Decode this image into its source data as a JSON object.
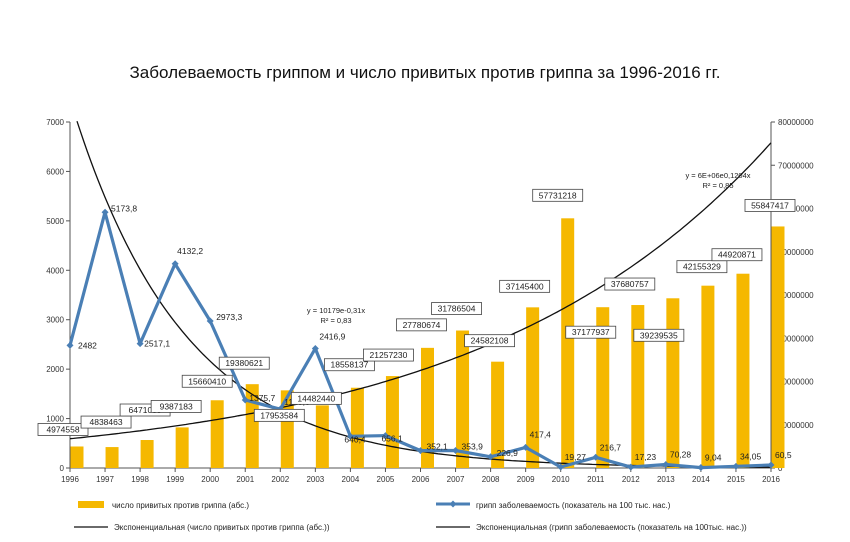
{
  "chart_data": {
    "type": "bar",
    "title": "Заболеваемость гриппом и число привитых против гриппа за 1996-2016 гг.",
    "categories": [
      "1996",
      "1997",
      "1998",
      "1999",
      "2000",
      "2001",
      "2002",
      "2003",
      "2004",
      "2005",
      "2006",
      "2007",
      "2008",
      "2009",
      "2010",
      "2011",
      "2012",
      "2013",
      "2014",
      "2015",
      "2016"
    ],
    "y_left": {
      "min": 0,
      "max": 7000,
      "ticks": [
        "0",
        "1000",
        "2000",
        "3000",
        "4000",
        "5000",
        "6000",
        "7000"
      ]
    },
    "y_right": {
      "min": 0,
      "max": 80000000,
      "ticks": [
        "0",
        "10000000",
        "20000000",
        "30000000",
        "40000000",
        "50000000",
        "60000000",
        "70000000",
        "80000000"
      ]
    },
    "series": [
      {
        "name": "число привитых против гриппа (абс.)",
        "type": "bar",
        "axis": "right",
        "color": "#f5b800",
        "values": [
          4974558,
          4838463,
          6471089,
          9387183,
          15660410,
          19380621,
          17953584,
          14482440,
          18558137,
          21257230,
          27780674,
          31786504,
          24582108,
          37145400,
          57731218,
          37177937,
          37680757,
          39239535,
          42155329,
          44920871,
          55847417
        ],
        "labels": [
          "4974558",
          "4838463",
          "6471089",
          "9387183",
          "15660410",
          "19380621",
          "17953584",
          "14482440",
          "18558137",
          "21257230",
          "27780674",
          "31786504",
          "24582108",
          "37145400",
          "57731218",
          "37177937",
          "37680757",
          "39239535",
          "42155329",
          "44920871",
          "55847417"
        ]
      },
      {
        "name": "грипп заболеваемость (показатель на 100 тыс. нас.)",
        "type": "line",
        "axis": "left",
        "color": "#4a7fb5",
        "values": [
          2482,
          5173.8,
          2517.1,
          4132.2,
          2973.3,
          1375.7,
          1190.6,
          2416.9,
          640.4,
          656.1,
          352.1,
          353.9,
          226.9,
          417.4,
          19.27,
          216.7,
          17.23,
          70.28,
          9.04,
          34.05,
          60.5
        ],
        "labels": [
          "2482",
          "5173,8",
          "2517,1",
          "4132,2",
          "2973,3",
          "1375,7",
          "1190,6",
          "2416,9",
          "640,4",
          "656,1",
          "352,1",
          "353,9",
          "226,9",
          "417,4",
          "19,27",
          "216,7",
          "17,23",
          "70,28",
          "9,04",
          "34,05",
          "60,5"
        ]
      },
      {
        "name": "Экспоненциальная (число привитых против гриппа (абс.))",
        "type": "trend",
        "axis": "right",
        "color": "#111111",
        "formula": {
          "a": 6000000,
          "b": 0.1204
        },
        "equation": "y = 6E+06e0,1204x",
        "r2": "R² = 0,85"
      },
      {
        "name": "Экспоненциальная (грипп заболеваемость (показатель на 100тыс. нас.))",
        "type": "trend",
        "axis": "left",
        "color": "#111111",
        "formula": {
          "a": 10179,
          "b": -0.31
        },
        "equation": "y = 10179e-0,31x",
        "r2": "R² = 0,83"
      }
    ],
    "legend": [
      "число привитых против гриппа (абс.)",
      "грипп заболеваемость (показатель на 100 тыс. нас.)",
      "Экспоненциальная (число привитых против гриппа (абс.))",
      "Экспоненциальная (грипп заболеваемость (показатель на 100тыс. нас.))"
    ]
  }
}
